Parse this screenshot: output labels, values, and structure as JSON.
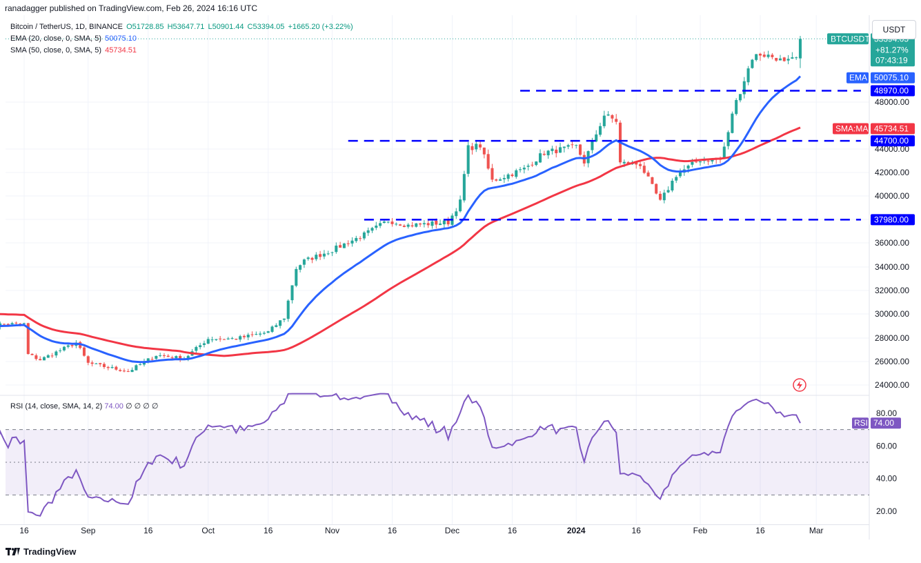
{
  "page": {
    "published_by": "ranadagger published on TradingView.com, Feb 26, 2024 16:16 UTC",
    "symbol_line": "Bitcoin / TetherUS, 1D, BINANCE",
    "ohlc": {
      "o": "O51728.85",
      "h": "H53647.71",
      "l": "L50901.44",
      "c": "C53394.05",
      "chg": "+1665.20 (+3.22%)"
    },
    "ema_legend": "EMA (20, close, 0, SMA, 5)",
    "ema_value": "50075.10",
    "sma_legend": "SMA (50, close, 0, SMA, 5)",
    "sma_value": "45734.51",
    "rsi_legend": "RSI (14, close, SMA, 14, 2)",
    "rsi_value": "74.00",
    "rsi_extra": "∅ ∅ ∅ ∅",
    "currency_button": "USDT",
    "brand": "TradingView",
    "symbol_tag": "BTCUSDT",
    "symbol_change": "+81.27%",
    "symbol_time": "07:43:19",
    "ema_tag": "EMA",
    "ema_price": "50075.10",
    "sma_tag": "SMA:MA",
    "sma_price": "45734.51",
    "rsi_tag": "RSI",
    "rsi_price": "74.00"
  },
  "chart_data": [
    {
      "type": "candlestick",
      "title": "Bitcoin / TetherUS, 1D, BINANCE",
      "price_axis_ticks": [
        24000,
        26000,
        28000,
        30000,
        32000,
        34000,
        36000,
        38000,
        40000,
        42000,
        44000,
        48000
      ],
      "price_axis_tick_labels": [
        "24000.00",
        "26000.00",
        "28000.00",
        "30000.00",
        "32000.00",
        "34000.00",
        "36000.00",
        "38000.00",
        "40000.00",
        "42000.00",
        "44000.00",
        "48000.00"
      ],
      "x_tick_labels": [
        "16",
        "Sep",
        "16",
        "Oct",
        "16",
        "Nov",
        "16",
        "Dec",
        "16",
        "2024",
        "16",
        "Feb",
        "16",
        "Mar"
      ],
      "x_tick_dates": [
        "2023-08-16",
        "2023-09-01",
        "2023-09-16",
        "2023-10-01",
        "2023-10-16",
        "2023-11-01",
        "2023-11-16",
        "2023-12-01",
        "2023-12-16",
        "2024-01-01",
        "2024-01-16",
        "2024-02-01",
        "2024-02-16",
        "2024-03-01"
      ],
      "horizontal_levels": [
        48970.0,
        44700.0,
        37980.0
      ],
      "horizontal_level_labels": [
        "48970.00",
        "44700.00",
        "37980.00"
      ],
      "horizontal_level_start_dates": [
        "2023-12-18",
        "2023-11-05",
        "2023-11-09"
      ],
      "x_range": [
        "2023-08-06",
        "2024-03-14"
      ],
      "key_prices": [
        [
          "2023-08-06",
          29100
        ],
        [
          "2023-08-16",
          29170
        ],
        [
          "2023-08-17",
          26600
        ],
        [
          "2023-08-20",
          26150
        ],
        [
          "2023-08-29",
          27600
        ],
        [
          "2023-09-01",
          25850
        ],
        [
          "2023-09-11",
          25150
        ],
        [
          "2023-09-18",
          26550
        ],
        [
          "2023-09-25",
          26250
        ],
        [
          "2023-10-01",
          27950
        ],
        [
          "2023-10-08",
          27950
        ],
        [
          "2023-10-16",
          28500
        ],
        [
          "2023-10-20",
          29700
        ],
        [
          "2023-10-23",
          33900
        ],
        [
          "2023-10-25",
          34500
        ],
        [
          "2023-11-01",
          35400
        ],
        [
          "2023-11-09",
          36700
        ],
        [
          "2023-11-15",
          37900
        ],
        [
          "2023-11-20",
          37500
        ],
        [
          "2023-11-30",
          37750
        ],
        [
          "2023-12-03",
          39500
        ],
        [
          "2023-12-05",
          44100
        ],
        [
          "2023-12-08",
          44300
        ],
        [
          "2023-12-11",
          41300
        ],
        [
          "2023-12-19",
          42300
        ],
        [
          "2023-12-24",
          43700
        ],
        [
          "2024-01-01",
          44200
        ],
        [
          "2024-01-03",
          42900
        ],
        [
          "2024-01-08",
          46900
        ],
        [
          "2024-01-11",
          46400
        ],
        [
          "2024-01-12",
          42800
        ],
        [
          "2024-01-17",
          42700
        ],
        [
          "2024-01-22",
          39500
        ],
        [
          "2024-01-26",
          41800
        ],
        [
          "2024-02-01",
          43100
        ],
        [
          "2024-02-06",
          43100
        ],
        [
          "2024-02-08",
          45300
        ],
        [
          "2024-02-09",
          47100
        ],
        [
          "2024-02-12",
          49900
        ],
        [
          "2024-02-14",
          51800
        ],
        [
          "2024-02-16",
          52100
        ],
        [
          "2024-02-20",
          51800
        ],
        [
          "2024-02-22",
          51300
        ],
        [
          "2024-02-25",
          51700
        ],
        [
          "2024-02-26",
          53394
        ]
      ],
      "ema20": {
        "label": "EMA",
        "last": 50075.1
      },
      "sma50": {
        "label": "SMA:MA",
        "last": 45734.51
      },
      "colors": {
        "up": "#26a69a",
        "down": "#ef5350",
        "ema": "#2962ff",
        "sma": "#f23645",
        "levels": "#0000ff"
      }
    },
    {
      "type": "line",
      "title": "RSI (14, close, SMA, 14, 2)",
      "y_ticks": [
        20,
        40,
        60,
        80
      ],
      "y_tick_labels": [
        "20.00",
        "40.00",
        "60.00",
        "80.00"
      ],
      "bands": [
        30,
        50,
        70
      ],
      "last": 74.0,
      "color": "#7e57c2"
    }
  ]
}
